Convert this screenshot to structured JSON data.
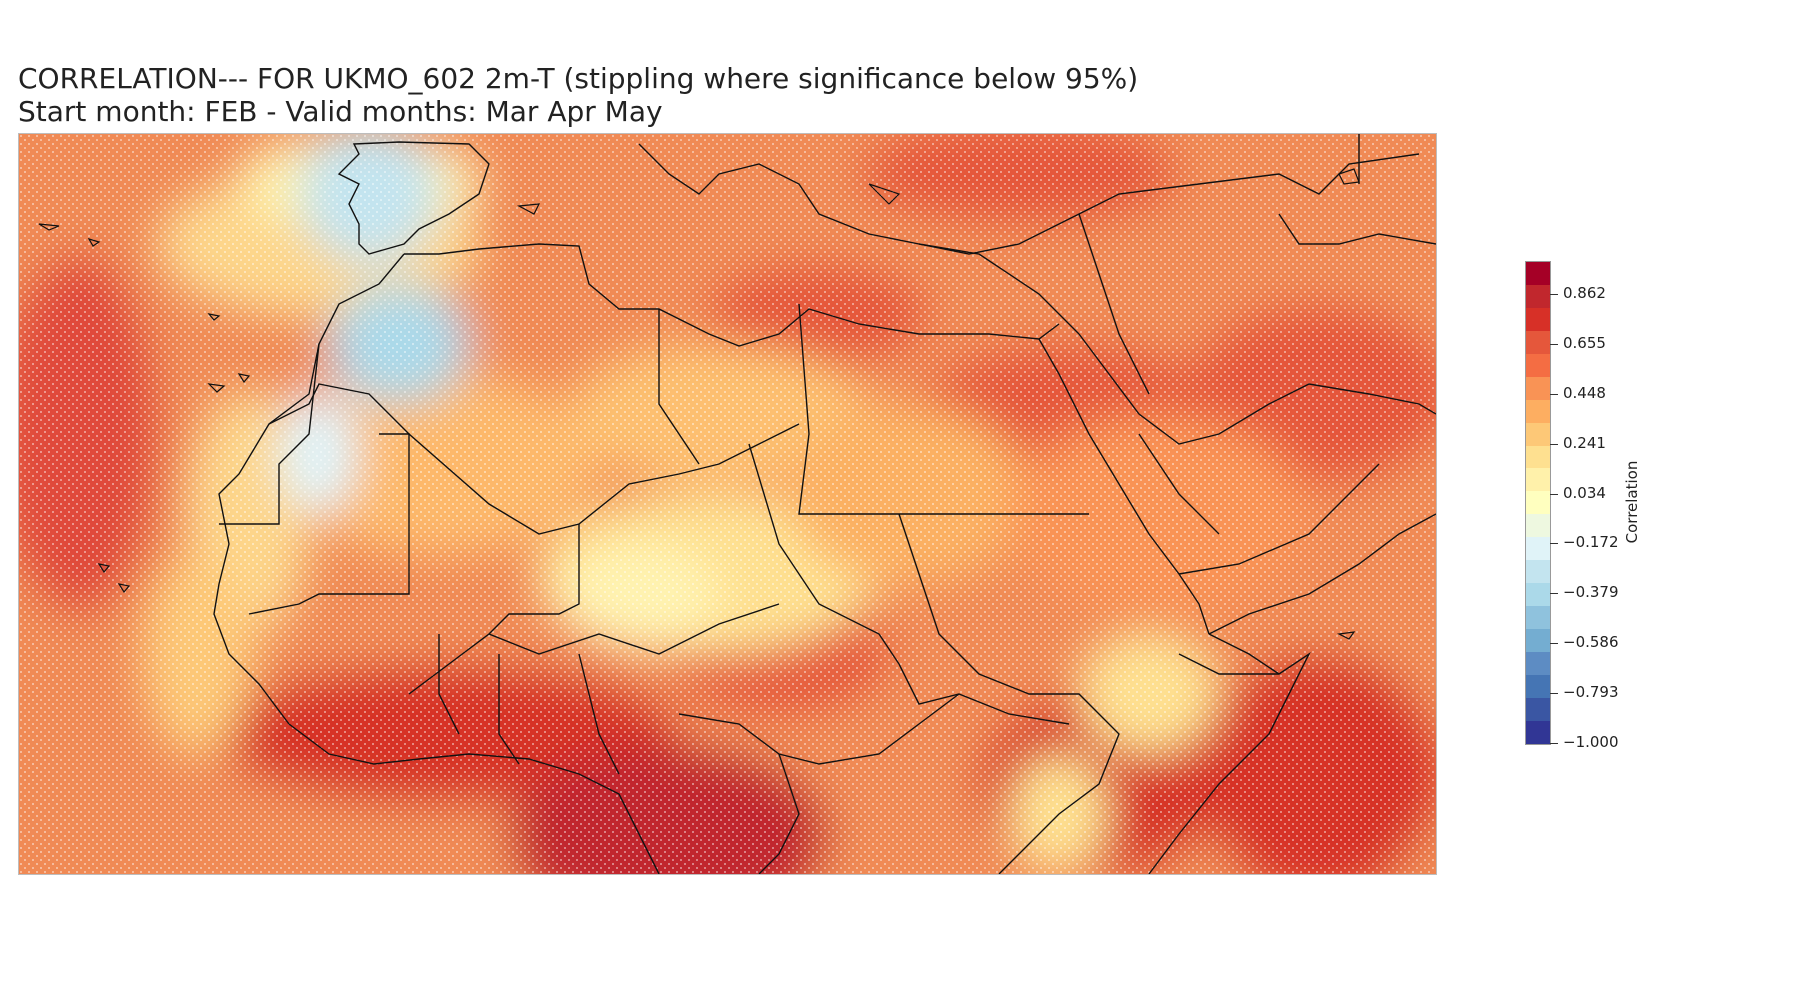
{
  "title": {
    "line1": "CORRELATION--- FOR UKMO_602 2m-T (stippling where significance below 95%)",
    "line2": "Start month: FEB - Valid months: Mar Apr May"
  },
  "map": {
    "region": "North Africa, Mediterranean and Middle East",
    "field": "2m-T correlation",
    "stippling": "significance below 95%",
    "dominant_range": "0.3 to 0.8",
    "negative_areas": [
      "Iberian Peninsula",
      "Moroccan coast"
    ],
    "strongest_areas": [
      "Gulf of Guinea",
      "Central Africa",
      "Arabian Sea"
    ]
  },
  "colorbar": {
    "label": "Correlation",
    "ticks": [
      "0.862",
      "0.655",
      "0.448",
      "0.241",
      "0.034",
      "−0.172",
      "−0.379",
      "−0.586",
      "−0.793",
      "−1.000"
    ],
    "tick_values": [
      0.862,
      0.655,
      0.448,
      0.241,
      0.034,
      -0.172,
      -0.379,
      -0.586,
      -0.793,
      -1.0
    ],
    "range": [
      -1.0,
      1.0
    ],
    "colors": [
      "#a50026",
      "#c1272d",
      "#d73027",
      "#e5573b",
      "#f46d43",
      "#f99355",
      "#fdae61",
      "#fdc877",
      "#fee090",
      "#fff1aa",
      "#ffffbf",
      "#eef8e0",
      "#e0f3f8",
      "#c3e4ef",
      "#abd9e9",
      "#8fc2dd",
      "#74add1",
      "#5d8cc3",
      "#4575b4",
      "#3a56a3",
      "#313695"
    ],
    "cmap": "RdYlBu_r"
  }
}
